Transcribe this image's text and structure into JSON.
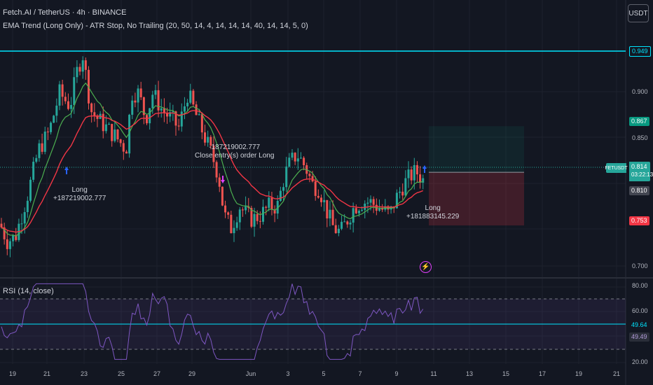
{
  "header": {
    "symbol_title": "Fetch.AI / TetherUS · 4h · BINANCE",
    "strategy_legend": "EMA Trend (Long Only) - ATR Stop, No Trailing (20, 50, 14, 4, 14, 14, 14, 40, 14, 14, 5, 0)",
    "rsi_legend": "RSI (14, close)"
  },
  "currency_button": "USDT",
  "price_axis": {
    "ticks": [
      "0.900",
      "0.850",
      "0.700"
    ],
    "tags": {
      "top_line": "0.949",
      "take_profit": "0.867",
      "current_price": "0.814",
      "countdown": "03:22:13",
      "ema": "0.810",
      "stop": "0.753"
    },
    "symbol_tag": "FETUSDT"
  },
  "rsi_axis": {
    "ticks": [
      "80.00",
      "60.00",
      "20.00"
    ],
    "tags": {
      "rsi": "49.64",
      "rsi_ma": "49.49"
    }
  },
  "time_axis": [
    "19",
    "21",
    "23",
    "25",
    "27",
    "29",
    "Jun",
    "3",
    "5",
    "7",
    "9",
    "11",
    "13",
    "15",
    "17",
    "19",
    "21"
  ],
  "annotations": {
    "long1": [
      "Long",
      "+187219002.777"
    ],
    "close": [
      "-187219002.777",
      "Close entry(s) order Long"
    ],
    "long2": [
      "Long",
      "+181883145.229"
    ]
  },
  "colors": {
    "background": "#131722",
    "up": "#26a69a",
    "down": "#ef5350",
    "ema_fast": "#4caf50",
    "ema_slow": "#f23645",
    "cyan_line": "#00e5ff",
    "rsi": "#7e57c2"
  },
  "icons": [
    "up-arrow-icon",
    "down-arrow-icon",
    "lightning-icon"
  ]
}
